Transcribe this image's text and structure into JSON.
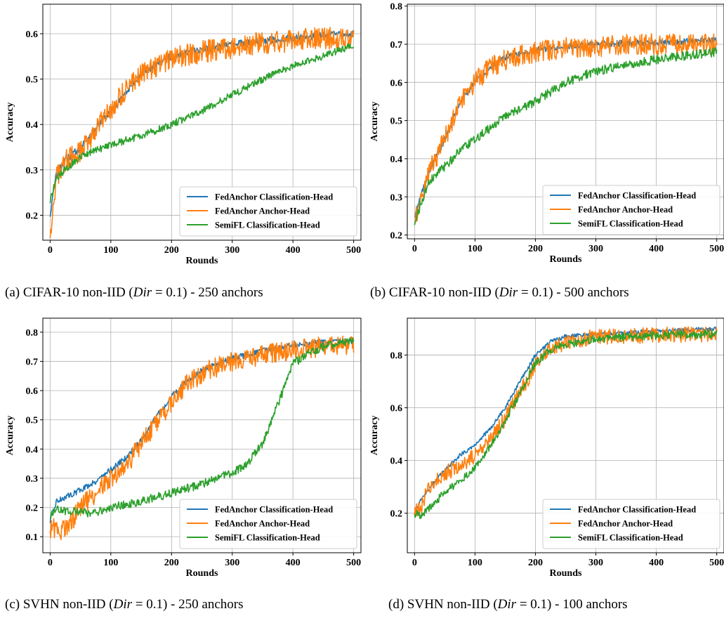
{
  "colors": {
    "fedanchor_cls": "#1f77b4",
    "fedanchor_anchor": "#ff7f0e",
    "semifl_cls": "#2ca02c",
    "grid": "#b0b0b0"
  },
  "captions": [
    {
      "label": "(a)",
      "pre": "CIFAR-10 non-IID (",
      "var": "Dir",
      "eq": " = 0.1",
      "post": ") - 250 anchors"
    },
    {
      "label": "(b)",
      "pre": "CIFAR-10 non-IID (",
      "var": "Dir",
      "eq": " = 0.1",
      "post": ") - 500 anchors"
    },
    {
      "label": "(c)",
      "pre": "SVHN non-IID (",
      "var": "Dir",
      "eq": " = 0.1",
      "post": ") - 250 anchors"
    },
    {
      "label": "(d)",
      "pre": "SVHN non-IID (",
      "var": "Dir",
      "eq": " = 0.1",
      "post": ") - 100 anchors"
    }
  ],
  "chart_data": [
    {
      "type": "line",
      "xlabel": "Rounds",
      "ylabel": "Accuracy",
      "xlim": [
        -12,
        512
      ],
      "ylim": [
        0.145,
        0.665
      ],
      "xticks": [
        0,
        100,
        200,
        300,
        400,
        500
      ],
      "yticks": [
        0.2,
        0.3,
        0.4,
        0.5,
        0.6
      ],
      "grid": true,
      "legend": "lower-right",
      "series": [
        {
          "name": "FedAnchor Classification-Head",
          "color": "#1f77b4",
          "noise": 0.008,
          "points": [
            [
              0,
              0.2
            ],
            [
              10,
              0.29
            ],
            [
              25,
              0.32
            ],
            [
              50,
              0.35
            ],
            [
              75,
              0.39
            ],
            [
              100,
              0.43
            ],
            [
              125,
              0.47
            ],
            [
              150,
              0.51
            ],
            [
              175,
              0.535
            ],
            [
              200,
              0.55
            ],
            [
              250,
              0.565
            ],
            [
              300,
              0.575
            ],
            [
              350,
              0.585
            ],
            [
              400,
              0.59
            ],
            [
              450,
              0.597
            ],
            [
              500,
              0.6
            ]
          ]
        },
        {
          "name": "FedAnchor Anchor-Head",
          "color": "#ff7f0e",
          "noise": 0.025,
          "points": [
            [
              0,
              0.16
            ],
            [
              10,
              0.28
            ],
            [
              25,
              0.32
            ],
            [
              50,
              0.34
            ],
            [
              75,
              0.39
            ],
            [
              100,
              0.43
            ],
            [
              125,
              0.48
            ],
            [
              150,
              0.51
            ],
            [
              175,
              0.53
            ],
            [
              200,
              0.545
            ],
            [
              250,
              0.56
            ],
            [
              300,
              0.57
            ],
            [
              350,
              0.58
            ],
            [
              400,
              0.585
            ],
            [
              450,
              0.59
            ],
            [
              500,
              0.59
            ]
          ]
        },
        {
          "name": "SemiFL Classification-Head",
          "color": "#2ca02c",
          "noise": 0.008,
          "points": [
            [
              0,
              0.23
            ],
            [
              10,
              0.28
            ],
            [
              25,
              0.3
            ],
            [
              50,
              0.33
            ],
            [
              100,
              0.355
            ],
            [
              150,
              0.375
            ],
            [
              200,
              0.4
            ],
            [
              250,
              0.43
            ],
            [
              300,
              0.465
            ],
            [
              350,
              0.5
            ],
            [
              400,
              0.53
            ],
            [
              450,
              0.55
            ],
            [
              500,
              0.575
            ]
          ]
        }
      ]
    },
    {
      "type": "line",
      "xlabel": "Rounds",
      "ylabel": "Accuracy",
      "xlim": [
        -12,
        512
      ],
      "ylim": [
        0.19,
        0.805
      ],
      "xticks": [
        0,
        100,
        200,
        300,
        400,
        500
      ],
      "yticks": [
        0.2,
        0.3,
        0.4,
        0.5,
        0.6,
        0.7,
        0.8
      ],
      "grid": true,
      "legend": "lower-right",
      "series": [
        {
          "name": "FedAnchor Classification-Head",
          "color": "#1f77b4",
          "noise": 0.008,
          "points": [
            [
              0,
              0.25
            ],
            [
              10,
              0.3
            ],
            [
              25,
              0.37
            ],
            [
              50,
              0.45
            ],
            [
              75,
              0.55
            ],
            [
              100,
              0.6
            ],
            [
              125,
              0.64
            ],
            [
              150,
              0.665
            ],
            [
              200,
              0.685
            ],
            [
              250,
              0.695
            ],
            [
              300,
              0.7
            ],
            [
              400,
              0.705
            ],
            [
              500,
              0.71
            ]
          ]
        },
        {
          "name": "FedAnchor Anchor-Head",
          "color": "#ff7f0e",
          "noise": 0.028,
          "points": [
            [
              0,
              0.24
            ],
            [
              10,
              0.3
            ],
            [
              25,
              0.37
            ],
            [
              50,
              0.45
            ],
            [
              75,
              0.55
            ],
            [
              100,
              0.6
            ],
            [
              125,
              0.64
            ],
            [
              150,
              0.66
            ],
            [
              200,
              0.68
            ],
            [
              250,
              0.69
            ],
            [
              300,
              0.695
            ],
            [
              400,
              0.7
            ],
            [
              500,
              0.7
            ]
          ]
        },
        {
          "name": "SemiFL Classification-Head",
          "color": "#2ca02c",
          "noise": 0.012,
          "points": [
            [
              0,
              0.23
            ],
            [
              10,
              0.28
            ],
            [
              25,
              0.34
            ],
            [
              50,
              0.38
            ],
            [
              75,
              0.42
            ],
            [
              100,
              0.45
            ],
            [
              150,
              0.51
            ],
            [
              200,
              0.55
            ],
            [
              250,
              0.6
            ],
            [
              300,
              0.63
            ],
            [
              350,
              0.645
            ],
            [
              400,
              0.66
            ],
            [
              450,
              0.67
            ],
            [
              500,
              0.68
            ]
          ]
        }
      ]
    },
    {
      "type": "line",
      "xlabel": "Rounds",
      "ylabel": "Accuracy",
      "xlim": [
        -12,
        512
      ],
      "ylim": [
        0.045,
        0.848
      ],
      "xticks": [
        0,
        100,
        200,
        300,
        400,
        500
      ],
      "yticks": [
        0.1,
        0.2,
        0.3,
        0.4,
        0.5,
        0.6,
        0.7,
        0.8
      ],
      "grid": true,
      "legend": "lower-right",
      "series": [
        {
          "name": "FedAnchor Classification-Head",
          "color": "#1f77b4",
          "noise": 0.01,
          "points": [
            [
              0,
              0.15
            ],
            [
              10,
              0.22
            ],
            [
              50,
              0.26
            ],
            [
              75,
              0.29
            ],
            [
              100,
              0.33
            ],
            [
              125,
              0.37
            ],
            [
              150,
              0.43
            ],
            [
              175,
              0.51
            ],
            [
              200,
              0.58
            ],
            [
              225,
              0.63
            ],
            [
              250,
              0.67
            ],
            [
              300,
              0.71
            ],
            [
              350,
              0.735
            ],
            [
              400,
              0.755
            ],
            [
              450,
              0.765
            ],
            [
              500,
              0.77
            ]
          ]
        },
        {
          "name": "FedAnchor Anchor-Head",
          "color": "#ff7f0e",
          "noise": 0.035,
          "points": [
            [
              0,
              0.13
            ],
            [
              25,
              0.12
            ],
            [
              50,
              0.2
            ],
            [
              75,
              0.25
            ],
            [
              100,
              0.3
            ],
            [
              125,
              0.34
            ],
            [
              150,
              0.42
            ],
            [
              175,
              0.49
            ],
            [
              200,
              0.56
            ],
            [
              225,
              0.62
            ],
            [
              250,
              0.66
            ],
            [
              300,
              0.7
            ],
            [
              350,
              0.72
            ],
            [
              400,
              0.74
            ],
            [
              450,
              0.75
            ],
            [
              500,
              0.76
            ]
          ]
        },
        {
          "name": "SemiFL Classification-Head",
          "color": "#2ca02c",
          "noise": 0.015,
          "points": [
            [
              0,
              0.17
            ],
            [
              10,
              0.19
            ],
            [
              50,
              0.185
            ],
            [
              75,
              0.18
            ],
            [
              100,
              0.2
            ],
            [
              150,
              0.22
            ],
            [
              200,
              0.25
            ],
            [
              250,
              0.28
            ],
            [
              300,
              0.32
            ],
            [
              325,
              0.35
            ],
            [
              350,
              0.42
            ],
            [
              375,
              0.55
            ],
            [
              400,
              0.69
            ],
            [
              425,
              0.73
            ],
            [
              450,
              0.75
            ],
            [
              500,
              0.77
            ]
          ]
        }
      ]
    },
    {
      "type": "line",
      "xlabel": "Rounds",
      "ylabel": "Accuracy",
      "xlim": [
        -12,
        512
      ],
      "ylim": [
        0.05,
        0.94
      ],
      "xticks": [
        0,
        100,
        200,
        300,
        400,
        500
      ],
      "yticks": [
        0.2,
        0.4,
        0.6,
        0.8
      ],
      "grid": true,
      "legend": "lower-right",
      "series": [
        {
          "name": "FedAnchor Classification-Head",
          "color": "#1f77b4",
          "noise": 0.008,
          "points": [
            [
              0,
              0.2
            ],
            [
              10,
              0.25
            ],
            [
              25,
              0.3
            ],
            [
              50,
              0.36
            ],
            [
              75,
              0.42
            ],
            [
              100,
              0.46
            ],
            [
              125,
              0.52
            ],
            [
              150,
              0.6
            ],
            [
              175,
              0.7
            ],
            [
              200,
              0.8
            ],
            [
              225,
              0.85
            ],
            [
              250,
              0.87
            ],
            [
              300,
              0.88
            ],
            [
              400,
              0.89
            ],
            [
              500,
              0.9
            ]
          ]
        },
        {
          "name": "FedAnchor Anchor-Head",
          "color": "#ff7f0e",
          "noise": 0.03,
          "points": [
            [
              0,
              0.2
            ],
            [
              10,
              0.22
            ],
            [
              25,
              0.3
            ],
            [
              50,
              0.35
            ],
            [
              75,
              0.38
            ],
            [
              100,
              0.42
            ],
            [
              125,
              0.48
            ],
            [
              150,
              0.56
            ],
            [
              175,
              0.66
            ],
            [
              200,
              0.76
            ],
            [
              225,
              0.82
            ],
            [
              250,
              0.85
            ],
            [
              300,
              0.87
            ],
            [
              400,
              0.875
            ],
            [
              500,
              0.88
            ]
          ]
        },
        {
          "name": "SemiFL Classification-Head",
          "color": "#2ca02c",
          "noise": 0.015,
          "points": [
            [
              0,
              0.2
            ],
            [
              10,
              0.19
            ],
            [
              25,
              0.22
            ],
            [
              50,
              0.28
            ],
            [
              75,
              0.32
            ],
            [
              100,
              0.37
            ],
            [
              125,
              0.45
            ],
            [
              150,
              0.55
            ],
            [
              175,
              0.66
            ],
            [
              200,
              0.77
            ],
            [
              225,
              0.82
            ],
            [
              250,
              0.84
            ],
            [
              300,
              0.86
            ],
            [
              400,
              0.875
            ],
            [
              500,
              0.88
            ]
          ]
        }
      ]
    }
  ]
}
